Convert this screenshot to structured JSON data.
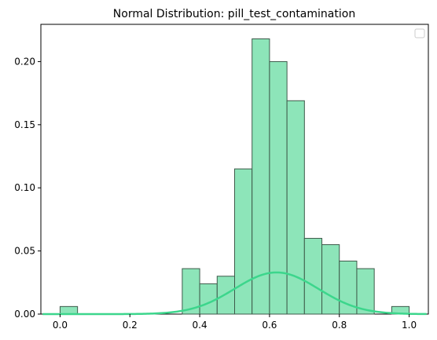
{
  "chart_data": {
    "type": "bar",
    "title": "Normal Distribution: pill_test_contamination",
    "xlabel": "",
    "ylabel": "",
    "xlim": [
      -0.055,
      1.055
    ],
    "ylim": [
      0,
      0.2295
    ],
    "xticks": [
      0.0,
      0.2,
      0.4,
      0.6,
      0.8,
      1.0
    ],
    "xtick_labels": [
      "0.0",
      "0.2",
      "0.4",
      "0.6",
      "0.8",
      "1.0"
    ],
    "yticks": [
      0.0,
      0.05,
      0.1,
      0.15,
      0.2
    ],
    "ytick_labels": [
      "0.00",
      "0.05",
      "0.10",
      "0.15",
      "0.20"
    ],
    "grid": false,
    "legend": "top-right",
    "histogram": {
      "bins": [
        {
          "x0": 0.0,
          "x1": 0.05,
          "value": 0.006
        },
        {
          "x0": 0.35,
          "x1": 0.4,
          "value": 0.036
        },
        {
          "x0": 0.4,
          "x1": 0.45,
          "value": 0.024
        },
        {
          "x0": 0.45,
          "x1": 0.5,
          "value": 0.03
        },
        {
          "x0": 0.5,
          "x1": 0.55,
          "value": 0.115
        },
        {
          "x0": 0.55,
          "x1": 0.6,
          "value": 0.218
        },
        {
          "x0": 0.6,
          "x1": 0.65,
          "value": 0.2
        },
        {
          "x0": 0.65,
          "x1": 0.7,
          "value": 0.169
        },
        {
          "x0": 0.7,
          "x1": 0.75,
          "value": 0.06
        },
        {
          "x0": 0.75,
          "x1": 0.8,
          "value": 0.055
        },
        {
          "x0": 0.8,
          "x1": 0.85,
          "value": 0.042
        },
        {
          "x0": 0.85,
          "x1": 0.9,
          "value": 0.036
        },
        {
          "x0": 0.95,
          "x1": 1.0,
          "value": 0.006
        }
      ],
      "fill_color": "#8de5b9",
      "edge_color": "#3e5a4a"
    },
    "curve": {
      "mean": 0.62,
      "sd": 0.12,
      "peak": 0.033,
      "x_range": [
        -0.05,
        1.05
      ],
      "color": "#3cd68c"
    }
  }
}
